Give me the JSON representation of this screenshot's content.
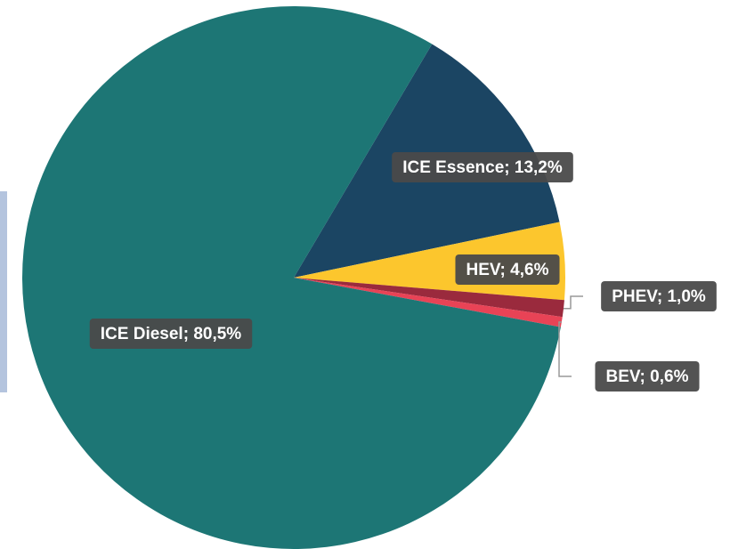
{
  "chart_data": {
    "type": "pie",
    "values": [
      13.2,
      4.6,
      1.0,
      0.6,
      80.5
    ],
    "value_labels": [
      "ICE Essence; 13,2%",
      "HEV; 4,6%",
      "PHEV; 1,0%",
      "BEV; 0,6%",
      "ICE Diesel; 80,5%"
    ],
    "colors": [
      "#1b4563",
      "#fcc62d",
      "#9a2a3d",
      "#e84356",
      "#1d7675"
    ]
  }
}
